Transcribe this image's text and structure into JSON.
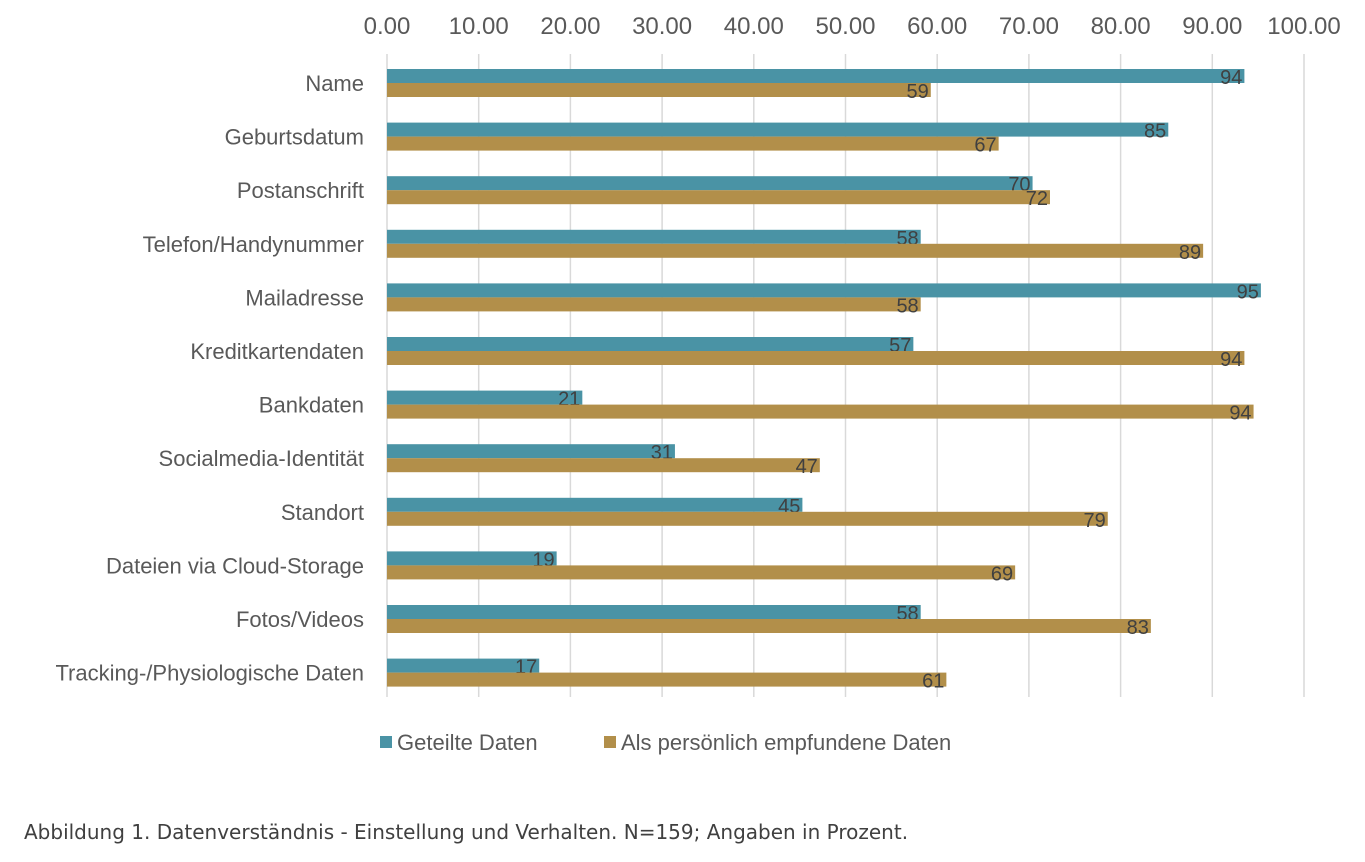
{
  "chart_data": {
    "type": "bar",
    "orientation": "horizontal",
    "categories": [
      "Name",
      "Geburtsdatum",
      "Postanschrift",
      "Telefon/Handynummer",
      "Mailadresse",
      "Kreditkartendaten",
      "Bankdaten",
      "Socialmedia-Identität",
      "Standort",
      "Dateien via Cloud-Storage",
      "Fotos/Videos",
      "Tracking-/Physiologische Daten"
    ],
    "series": [
      {
        "name": "Geteilte Daten",
        "color": "#4a93a5",
        "values": [
          94,
          85,
          70,
          58,
          95,
          57,
          21,
          31,
          45,
          19,
          58,
          17
        ],
        "labels": [
          "94",
          "85",
          "70",
          "58",
          "95",
          "57",
          "21",
          "31",
          "45",
          "19",
          "58",
          "17"
        ],
        "bar_values": [
          93.5,
          85.2,
          70.4,
          58.2,
          95.3,
          57.4,
          21.3,
          31.4,
          45.3,
          18.5,
          58.2,
          16.6
        ]
      },
      {
        "name": "Als persönlich empfundene Daten",
        "color": "#b28f4a",
        "values": [
          59,
          67,
          72,
          89,
          58,
          94,
          94,
          47,
          79,
          69,
          83,
          61
        ],
        "labels": [
          "59",
          "67",
          "72",
          "89",
          "58",
          "94",
          "94",
          "47",
          "79",
          "69",
          "83",
          "61"
        ],
        "bar_values": [
          59.3,
          66.7,
          72.3,
          89.0,
          58.2,
          93.5,
          94.5,
          47.2,
          78.6,
          68.5,
          83.3,
          61.0
        ]
      }
    ],
    "xlim": [
      0,
      100
    ],
    "x_ticks": [
      "0.00",
      "10.00",
      "20.00",
      "30.00",
      "40.00",
      "50.00",
      "60.00",
      "70.00",
      "80.00",
      "90.00",
      "100.00"
    ],
    "x_axis_position": "top",
    "grid": "vertical",
    "legend_position": "bottom",
    "title": "",
    "xlabel": "",
    "ylabel": ""
  },
  "caption": "Abbildung 1. Datenverständnis - Einstellung und Verhalten. N=159; Angaben in Prozent."
}
